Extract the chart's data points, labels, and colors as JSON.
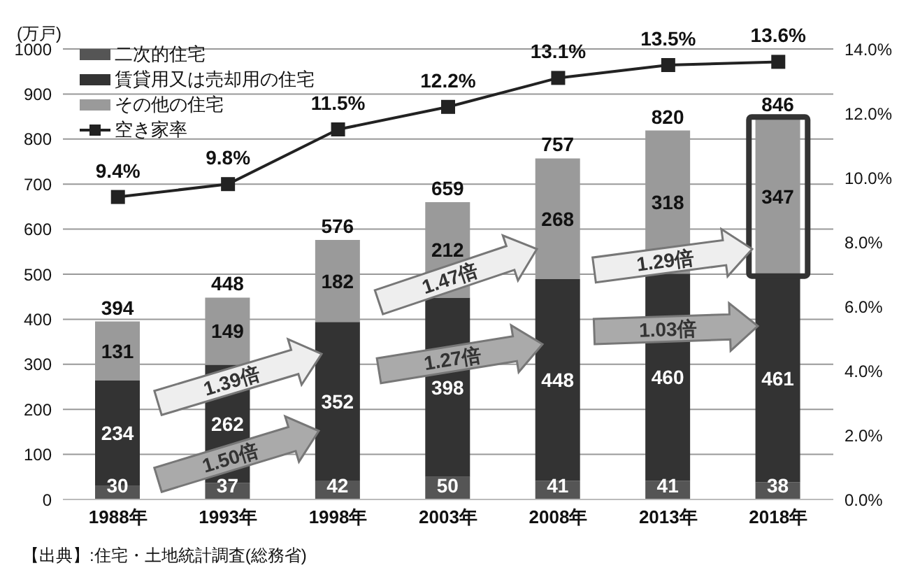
{
  "chart_data": {
    "type": "bar",
    "stacked": true,
    "ylabel": "(万戸)",
    "categories": [
      "1988年",
      "1993年",
      "1998年",
      "2003年",
      "2008年",
      "2013年",
      "2018年"
    ],
    "series": [
      {
        "name": "二次的住宅",
        "color": "#555555",
        "values": [
          30,
          37,
          42,
          50,
          41,
          41,
          38
        ]
      },
      {
        "name": "賃貸用又は売却用の住宅",
        "color": "#333333",
        "values": [
          234,
          262,
          352,
          398,
          448,
          460,
          461
        ]
      },
      {
        "name": "その他の住宅",
        "color": "#9a9a9a",
        "values": [
          131,
          149,
          182,
          212,
          268,
          318,
          347
        ]
      },
      {
        "name": "空き家率",
        "type": "line",
        "axis": "y2",
        "color": "#222222",
        "marker": "square",
        "values": [
          9.4,
          9.8,
          11.5,
          12.2,
          13.1,
          13.5,
          13.6
        ],
        "value_labels": [
          "9.4%",
          "9.8%",
          "11.5%",
          "12.2%",
          "13.1%",
          "13.5%",
          "13.6%"
        ]
      }
    ],
    "totals": [
      "394",
      "448",
      "576",
      "659",
      "757",
      "820",
      "846"
    ],
    "data_labels": true,
    "ylim": [
      0,
      1000
    ],
    "yticks": [
      0,
      100,
      200,
      300,
      400,
      500,
      600,
      700,
      800,
      900,
      1000
    ],
    "y2lim": [
      0,
      14
    ],
    "y2ticks": [
      {
        "value": 0,
        "label": "0.0%"
      },
      {
        "value": 2,
        "label": "2.0%"
      },
      {
        "value": 4,
        "label": "4.0%"
      },
      {
        "value": 6,
        "label": "6.0%"
      },
      {
        "value": 8,
        "label": "8.0%"
      },
      {
        "value": 10,
        "label": "10.0%"
      },
      {
        "value": 12,
        "label": "12.0%"
      },
      {
        "value": 14,
        "label": "14.0%"
      }
    ],
    "grid": "y",
    "legend": "top left",
    "annotations": [
      "1.50倍",
      "1.39倍",
      "1.27倍",
      "1.47倍",
      "1.03倍",
      "1.29倍",
      "【出典】:住宅・土地統計調査(総務省)"
    ]
  }
}
